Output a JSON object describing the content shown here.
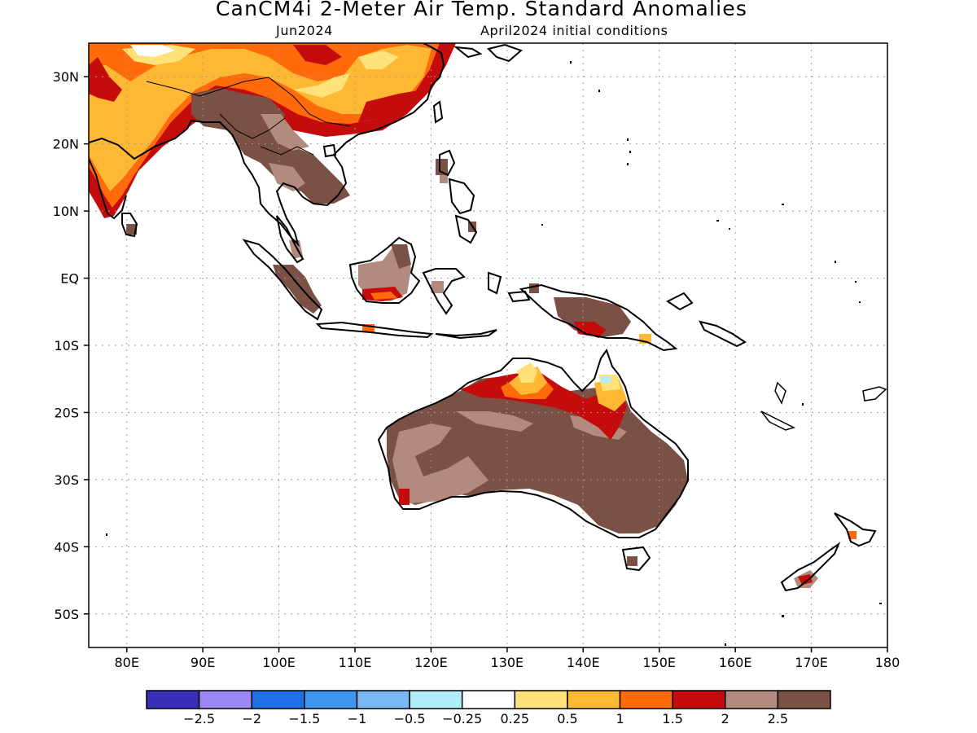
{
  "title": "CanCM4i 2-Meter Air Temp. Standard Anomalies",
  "subtitle_left": "Jun2024",
  "subtitle_right": "April2024 initial conditions",
  "map": {
    "lat_labels": [
      "30N",
      "20N",
      "10N",
      "EQ",
      "10S",
      "20S",
      "30S",
      "40S",
      "50S"
    ],
    "lat_values": [
      30,
      20,
      10,
      0,
      -10,
      -20,
      -30,
      -40,
      -50
    ],
    "lon_labels": [
      "80E",
      "90E",
      "100E",
      "110E",
      "120E",
      "130E",
      "140E",
      "150E",
      "160E",
      "170E",
      "180"
    ],
    "lon_values": [
      80,
      90,
      100,
      110,
      120,
      130,
      140,
      150,
      160,
      170,
      180
    ],
    "lon_range": [
      75,
      180
    ],
    "lat_range": [
      -55,
      35
    ],
    "grid": "dotted"
  },
  "colorbar": {
    "colors": [
      "#3a2fb8",
      "#9b87f5",
      "#1f6fe6",
      "#3d95f0",
      "#78b8f5",
      "#b2eefa",
      "#ffffff",
      "#ffe27a",
      "#ffb833",
      "#ff6a0a",
      "#c40c0c",
      "#b38a7e",
      "#7a5144"
    ],
    "labels": [
      "−2.5",
      "−2",
      "−1.5",
      "−1",
      "−0.5",
      "−0.25",
      "0.25",
      "0.5",
      "1",
      "1.5",
      "2",
      "2.5"
    ]
  }
}
